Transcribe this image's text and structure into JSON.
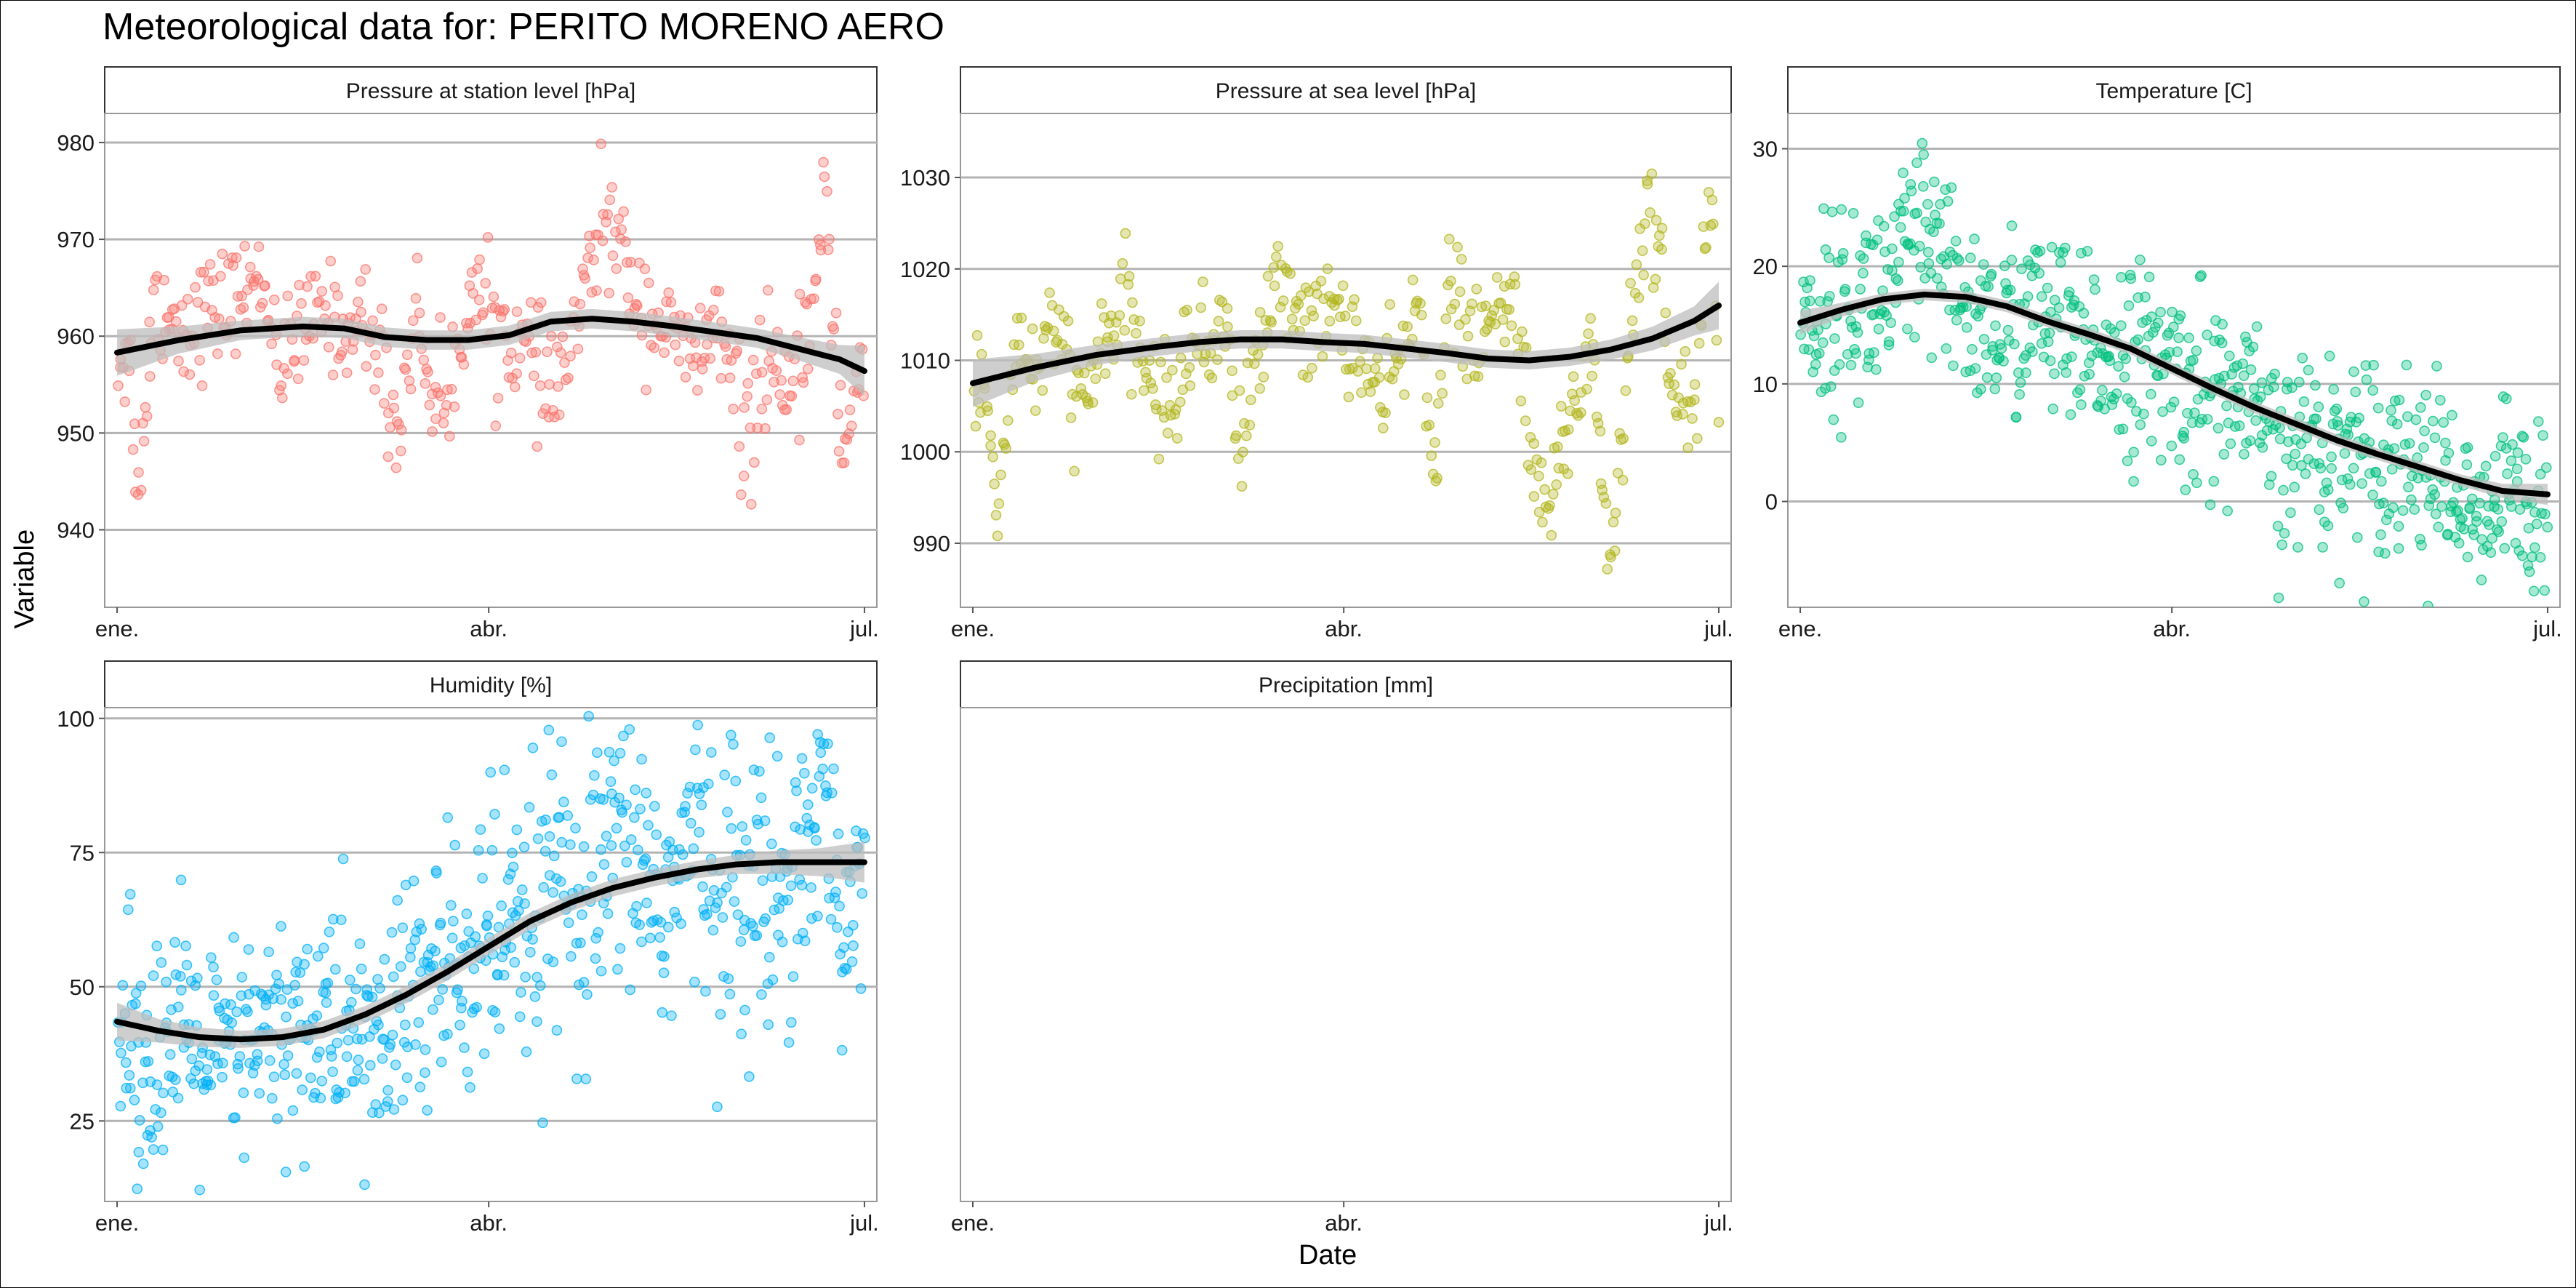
{
  "figure": {
    "title": "Meteorological data for: PERITO MORENO AERO",
    "xlabel": "Date",
    "ylabel": "Variable"
  },
  "colors": {
    "grid": "#b3b3b3",
    "panel_border": "#999999",
    "strip_bg": "#ffffff",
    "smooth_line": "#000000",
    "ribbon": "#bdbdbd"
  },
  "chart_data": [
    {
      "type": "scatter",
      "title": "Pressure at station level [hPa]",
      "color": "#F8766D",
      "x_ticks": [
        "ene.",
        "abr.",
        "jul."
      ],
      "y_ticks": [
        940,
        950,
        960,
        970,
        980
      ],
      "ylim": [
        932,
        983
      ],
      "smooth": [
        [
          0,
          958.3
        ],
        [
          15,
          959.6
        ],
        [
          30,
          960.6
        ],
        [
          45,
          961.0
        ],
        [
          55,
          960.8
        ],
        [
          65,
          959.9
        ],
        [
          75,
          959.6
        ],
        [
          85,
          959.6
        ],
        [
          95,
          960.1
        ],
        [
          105,
          961.5
        ],
        [
          115,
          961.8
        ],
        [
          125,
          961.5
        ],
        [
          135,
          961.0
        ],
        [
          145,
          960.4
        ],
        [
          155,
          959.8
        ],
        [
          165,
          958.7
        ],
        [
          175,
          957.6
        ],
        [
          181,
          956.4
        ]
      ],
      "ribbon_width": [
        2.4,
        1.4,
        1.0,
        1.0,
        1.0,
        1.0,
        1.0,
        1.0,
        1.0,
        1.0,
        1.0,
        1.0,
        1.0,
        1.0,
        1.0,
        1.2,
        1.5,
        2.6
      ],
      "cloud": [
        [
          3,
          958,
          3
        ],
        [
          5,
          943,
          2
        ],
        [
          9,
          964,
          3
        ],
        [
          15,
          961,
          3
        ],
        [
          25,
          963,
          3
        ],
        [
          35,
          966,
          2
        ],
        [
          40,
          957,
          3
        ],
        [
          50,
          963,
          3
        ],
        [
          55,
          960,
          2
        ],
        [
          60,
          962,
          3
        ],
        [
          65,
          956,
          3
        ],
        [
          68,
          949,
          3
        ],
        [
          72,
          963,
          3
        ],
        [
          76,
          955,
          3
        ],
        [
          80,
          952,
          3
        ],
        [
          85,
          965,
          3
        ],
        [
          92,
          961,
          3
        ],
        [
          100,
          958,
          3
        ],
        [
          105,
          953,
          3
        ],
        [
          112,
          962,
          3
        ],
        [
          118,
          973,
          3
        ],
        [
          125,
          965,
          3
        ],
        [
          130,
          962,
          3
        ],
        [
          135,
          960,
          2
        ],
        [
          140,
          957,
          3
        ],
        [
          145,
          962,
          3
        ],
        [
          152,
          949,
          4
        ],
        [
          158,
          959,
          3
        ],
        [
          162,
          951,
          3
        ],
        [
          168,
          962,
          3
        ],
        [
          172,
          972,
          4
        ],
        [
          176,
          947,
          3
        ],
        [
          180,
          957,
          3
        ]
      ],
      "points_per_day": 3,
      "point_count": 460
    },
    {
      "type": "scatter",
      "title": "Pressure at sea level [hPa]",
      "color": "#B3B51D",
      "x_ticks": [
        "ene.",
        "abr.",
        "jul."
      ],
      "y_ticks": [
        990,
        1000,
        1010,
        1020,
        1030
      ],
      "ylim": [
        983,
        1037
      ],
      "smooth": [
        [
          0,
          1007.5
        ],
        [
          15,
          1009.2
        ],
        [
          30,
          1010.6
        ],
        [
          45,
          1011.5
        ],
        [
          55,
          1012.0
        ],
        [
          65,
          1012.3
        ],
        [
          75,
          1012.3
        ],
        [
          85,
          1012.0
        ],
        [
          95,
          1011.8
        ],
        [
          105,
          1011.3
        ],
        [
          115,
          1010.8
        ],
        [
          125,
          1010.2
        ],
        [
          135,
          1010.0
        ],
        [
          145,
          1010.4
        ],
        [
          155,
          1011.2
        ],
        [
          165,
          1012.4
        ],
        [
          175,
          1014.3
        ],
        [
          181,
          1016.0
        ]
      ],
      "ribbon_width": [
        2.6,
        1.5,
        1.1,
        1.0,
        1.0,
        1.0,
        1.0,
        1.0,
        1.0,
        1.0,
        1.0,
        1.0,
        1.0,
        1.0,
        1.1,
        1.3,
        1.6,
        2.6
      ],
      "cloud": [
        [
          3,
          1007,
          3
        ],
        [
          6,
          993,
          2
        ],
        [
          10,
          1012,
          3
        ],
        [
          15,
          1009,
          3
        ],
        [
          22,
          1013,
          3
        ],
        [
          26,
          1003,
          3
        ],
        [
          32,
          1013,
          3
        ],
        [
          38,
          1015,
          3
        ],
        [
          42,
          1009,
          3
        ],
        [
          48,
          1004,
          3
        ],
        [
          52,
          1012,
          3
        ],
        [
          58,
          1011,
          3
        ],
        [
          62,
          1018,
          3
        ],
        [
          64,
          997,
          3
        ],
        [
          68,
          1009,
          3
        ],
        [
          75,
          1019,
          3
        ],
        [
          82,
          1013,
          3
        ],
        [
          88,
          1016,
          3
        ],
        [
          95,
          1010,
          3
        ],
        [
          100,
          1005,
          3
        ],
        [
          108,
          1016,
          3
        ],
        [
          112,
          1000,
          3
        ],
        [
          116,
          1018,
          3
        ],
        [
          122,
          1011,
          3
        ],
        [
          128,
          1015,
          3
        ],
        [
          132,
          1016,
          3
        ],
        [
          138,
          991,
          3
        ],
        [
          145,
          1004,
          3
        ],
        [
          150,
          1012,
          3
        ],
        [
          155,
          987,
          4
        ],
        [
          160,
          1016,
          3
        ],
        [
          165,
          1030,
          4
        ],
        [
          170,
          1006,
          3
        ],
        [
          175,
          1003,
          4
        ],
        [
          179,
          1031,
          3
        ],
        [
          181,
          1006,
          3
        ]
      ],
      "points_per_day": 3,
      "point_count": 460
    },
    {
      "type": "scatter",
      "title": "Temperature [C]",
      "color": "#00BF7D",
      "x_ticks": [
        "ene.",
        "abr.",
        "jul."
      ],
      "y_ticks": [
        0,
        10,
        20,
        30
      ],
      "ylim": [
        -9,
        33
      ],
      "smooth": [
        [
          0,
          15.2
        ],
        [
          10,
          16.3
        ],
        [
          20,
          17.2
        ],
        [
          30,
          17.6
        ],
        [
          40,
          17.4
        ],
        [
          50,
          16.6
        ],
        [
          60,
          15.3
        ],
        [
          70,
          14.2
        ],
        [
          80,
          13.0
        ],
        [
          90,
          11.3
        ],
        [
          100,
          9.6
        ],
        [
          110,
          8.0
        ],
        [
          120,
          6.6
        ],
        [
          130,
          5.2
        ],
        [
          140,
          4.0
        ],
        [
          150,
          2.9
        ],
        [
          160,
          1.8
        ],
        [
          170,
          0.9
        ],
        [
          181,
          0.6
        ]
      ],
      "ribbon_width": [
        1.0,
        0.6,
        0.5,
        0.5,
        0.5,
        0.5,
        0.5,
        0.5,
        0.5,
        0.5,
        0.5,
        0.5,
        0.5,
        0.5,
        0.5,
        0.5,
        0.5,
        0.6,
        0.9
      ],
      "cloud": [
        [
          0,
          15,
          3.5
        ],
        [
          8,
          16,
          4
        ],
        [
          16,
          17,
          4.5
        ],
        [
          25,
          19,
          5
        ],
        [
          30,
          22,
          5
        ],
        [
          36,
          18,
          4
        ],
        [
          42,
          16,
          4
        ],
        [
          48,
          14,
          4
        ],
        [
          55,
          16,
          4
        ],
        [
          62,
          15,
          4
        ],
        [
          68,
          12,
          4
        ],
        [
          75,
          13,
          4
        ],
        [
          82,
          12,
          4
        ],
        [
          88,
          11,
          4
        ],
        [
          95,
          10,
          4.5
        ],
        [
          102,
          9,
          4
        ],
        [
          108,
          8,
          4
        ],
        [
          112,
          7,
          3
        ],
        [
          116,
          2,
          4
        ],
        [
          122,
          6,
          4
        ],
        [
          128,
          4,
          4
        ],
        [
          135,
          5,
          4
        ],
        [
          142,
          4,
          4
        ],
        [
          148,
          4,
          4
        ],
        [
          155,
          2,
          4
        ],
        [
          160,
          0,
          3
        ],
        [
          165,
          -3,
          3
        ],
        [
          170,
          1,
          4
        ],
        [
          175,
          0,
          4
        ],
        [
          181,
          2,
          4
        ]
      ],
      "points_per_day": 4,
      "point_count": 700
    },
    {
      "type": "scatter",
      "title": "Humidity [%]",
      "color": "#00B0F6",
      "x_ticks": [
        "ene.",
        "abr.",
        "jul."
      ],
      "y_ticks": [
        25,
        50,
        75,
        100
      ],
      "ylim": [
        10,
        102
      ],
      "smooth": [
        [
          0,
          43.5
        ],
        [
          10,
          41.8
        ],
        [
          20,
          40.6
        ],
        [
          30,
          40.2
        ],
        [
          40,
          40.6
        ],
        [
          50,
          42.0
        ],
        [
          60,
          44.8
        ],
        [
          70,
          48.5
        ],
        [
          80,
          52.8
        ],
        [
          90,
          57.5
        ],
        [
          100,
          62.2
        ],
        [
          110,
          65.7
        ],
        [
          120,
          68.4
        ],
        [
          130,
          70.3
        ],
        [
          140,
          71.8
        ],
        [
          150,
          72.8
        ],
        [
          160,
          73.2
        ],
        [
          170,
          73.2
        ],
        [
          181,
          73.2
        ]
      ],
      "ribbon_width": [
        3.5,
        2.2,
        1.8,
        1.6,
        1.6,
        1.6,
        1.6,
        1.6,
        1.6,
        1.6,
        1.6,
        1.6,
        1.6,
        1.6,
        1.6,
        1.8,
        2.2,
        2.6,
        3.8
      ],
      "cloud": [
        [
          0,
          40,
          10
        ],
        [
          8,
          38,
          12
        ],
        [
          16,
          40,
          11
        ],
        [
          25,
          36,
          10
        ],
        [
          35,
          40,
          10
        ],
        [
          45,
          42,
          11
        ],
        [
          55,
          44,
          12
        ],
        [
          60,
          38,
          12
        ],
        [
          65,
          40,
          10
        ],
        [
          72,
          50,
          13
        ],
        [
          80,
          52,
          14
        ],
        [
          85,
          55,
          14
        ],
        [
          90,
          60,
          14
        ],
        [
          98,
          55,
          13
        ],
        [
          105,
          70,
          14
        ],
        [
          112,
          60,
          14
        ],
        [
          118,
          70,
          14
        ],
        [
          125,
          78,
          13
        ],
        [
          132,
          65,
          14
        ],
        [
          140,
          75,
          13
        ],
        [
          148,
          72,
          14
        ],
        [
          155,
          65,
          14
        ],
        [
          160,
          70,
          13
        ],
        [
          168,
          78,
          12
        ],
        [
          172,
          90,
          10
        ],
        [
          176,
          55,
          12
        ],
        [
          181,
          75,
          11
        ]
      ],
      "points_per_day": 4,
      "point_count": 700
    },
    {
      "type": "scatter",
      "title": "Precipitation [mm]",
      "color": "#E76BF3",
      "x_ticks": [
        "ene.",
        "abr.",
        "jul."
      ],
      "y_ticks": [],
      "ylim": [
        0,
        1
      ],
      "smooth": [],
      "ribbon_width": [],
      "cloud": [],
      "points_per_day": 0,
      "point_count": 0
    }
  ]
}
